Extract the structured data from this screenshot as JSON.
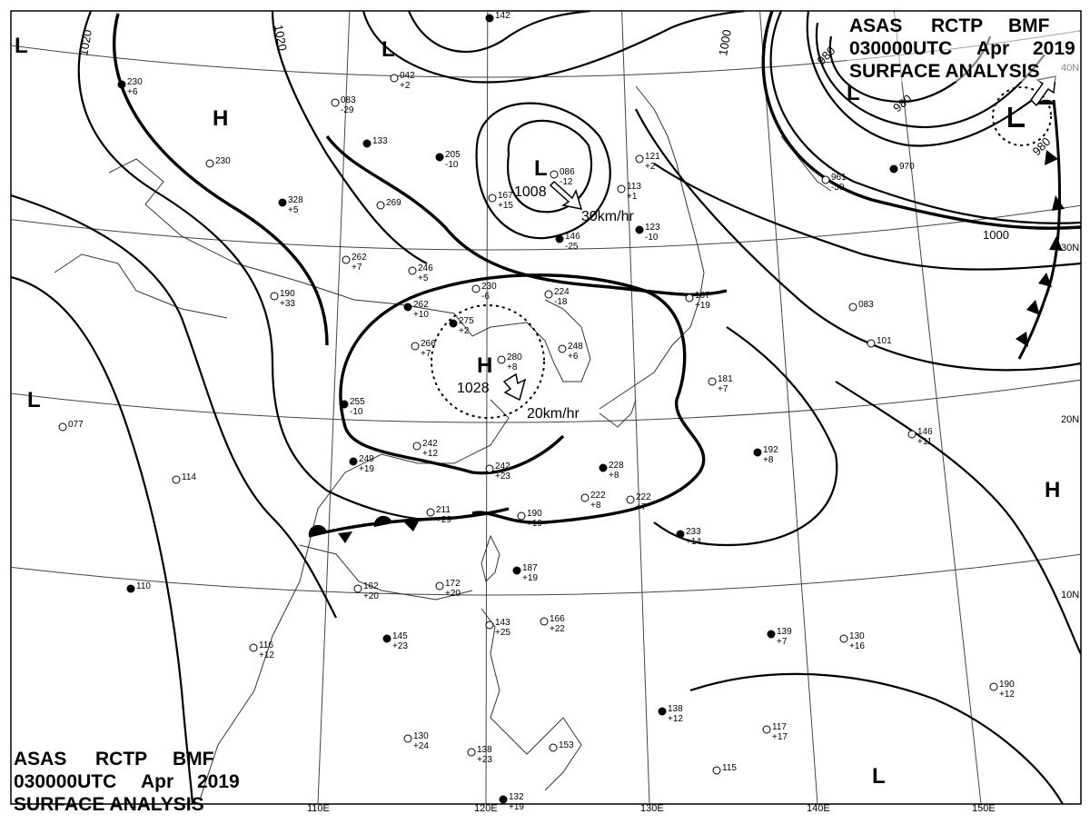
{
  "header_top": {
    "line1": [
      "ASAS",
      "RCTP",
      "BMF"
    ],
    "line2": [
      "030000UTC",
      "Apr",
      "2019"
    ],
    "line3": "SURFACE ANALYSIS"
  },
  "header_bottom": {
    "line1": [
      "ASAS",
      "RCTP",
      "BMF"
    ],
    "line2": [
      "030000UTC",
      "Apr",
      "2019"
    ],
    "line3": "SURFACE ANALYSIS"
  },
  "longitude_labels": [
    "110E",
    "120E",
    "130E",
    "140E",
    "150E"
  ],
  "latitude_labels": [
    "40N",
    "30N",
    "20N",
    "10N"
  ],
  "isobar_labels": [
    "1020",
    "1020",
    "1000",
    "980",
    "980",
    "980",
    "1000"
  ],
  "pressure_centers": [
    {
      "type": "L",
      "value": "1008",
      "motion": "30km/hr"
    },
    {
      "type": "H",
      "value": "1028",
      "motion": "20km/hr"
    },
    {
      "type": "L",
      "value": ""
    },
    {
      "type": "L",
      "value": ""
    },
    {
      "type": "H",
      "value": ""
    },
    {
      "type": "L",
      "value": ""
    },
    {
      "type": "L",
      "value": ""
    },
    {
      "type": "H",
      "value": ""
    },
    {
      "type": "L",
      "value": ""
    }
  ],
  "stations": [
    [
      "205",
      "-10"
    ],
    [
      "167",
      "+15"
    ],
    [
      "086",
      "-12"
    ],
    [
      "146",
      "-25"
    ],
    [
      "230",
      "-6"
    ],
    [
      "224",
      "-18"
    ],
    [
      "275",
      "+2"
    ],
    [
      "280",
      "+8"
    ],
    [
      "248",
      "+6"
    ],
    [
      "262",
      "+10"
    ],
    [
      "246",
      "+5"
    ],
    [
      "266",
      "+7"
    ],
    [
      "255",
      "-10"
    ],
    [
      "242",
      "+12"
    ],
    [
      "242",
      "+23"
    ],
    [
      "249",
      "+19"
    ],
    [
      "211",
      "+29"
    ],
    [
      "190",
      "+19"
    ],
    [
      "187",
      "+19"
    ],
    [
      "172",
      "+20"
    ],
    [
      "162",
      "+20"
    ],
    [
      "228",
      "+8"
    ],
    [
      "222",
      "+8"
    ],
    [
      "222",
      "+7"
    ],
    [
      "192",
      "+8"
    ],
    [
      "146",
      "+11"
    ],
    [
      "114",
      ""
    ],
    [
      "110",
      ""
    ],
    [
      "077",
      ""
    ],
    [
      "116",
      "+12"
    ],
    [
      "145",
      "+23"
    ],
    [
      "130",
      "+24"
    ],
    [
      "138",
      "+23"
    ],
    [
      "132",
      "+19"
    ],
    [
      "166",
      "+22"
    ],
    [
      "153",
      ""
    ],
    [
      "138",
      "+12"
    ],
    [
      "117",
      "+17"
    ],
    [
      "130",
      "+16"
    ],
    [
      "139",
      "+7"
    ],
    [
      "190",
      "+12"
    ],
    [
      "115",
      ""
    ],
    [
      "233",
      "+14"
    ],
    [
      "181",
      "+7"
    ],
    [
      "190",
      "+33"
    ],
    [
      "328",
      "+5"
    ],
    [
      "269",
      ""
    ],
    [
      "262",
      "+7"
    ],
    [
      "133",
      ""
    ],
    [
      "083",
      "-29"
    ],
    [
      "042",
      "+2"
    ],
    [
      "142",
      ""
    ],
    [
      "121",
      "+2"
    ],
    [
      "113",
      "+1"
    ],
    [
      "123",
      "-10"
    ],
    [
      "167",
      "+19"
    ],
    [
      "961",
      "-30"
    ],
    [
      "970",
      ""
    ],
    [
      "083",
      ""
    ],
    [
      "101",
      ""
    ],
    [
      "230",
      "+6"
    ],
    [
      "230",
      ""
    ],
    [
      "143",
      "+25"
    ]
  ],
  "colors": {
    "ink": "#000000",
    "background": "#ffffff"
  }
}
